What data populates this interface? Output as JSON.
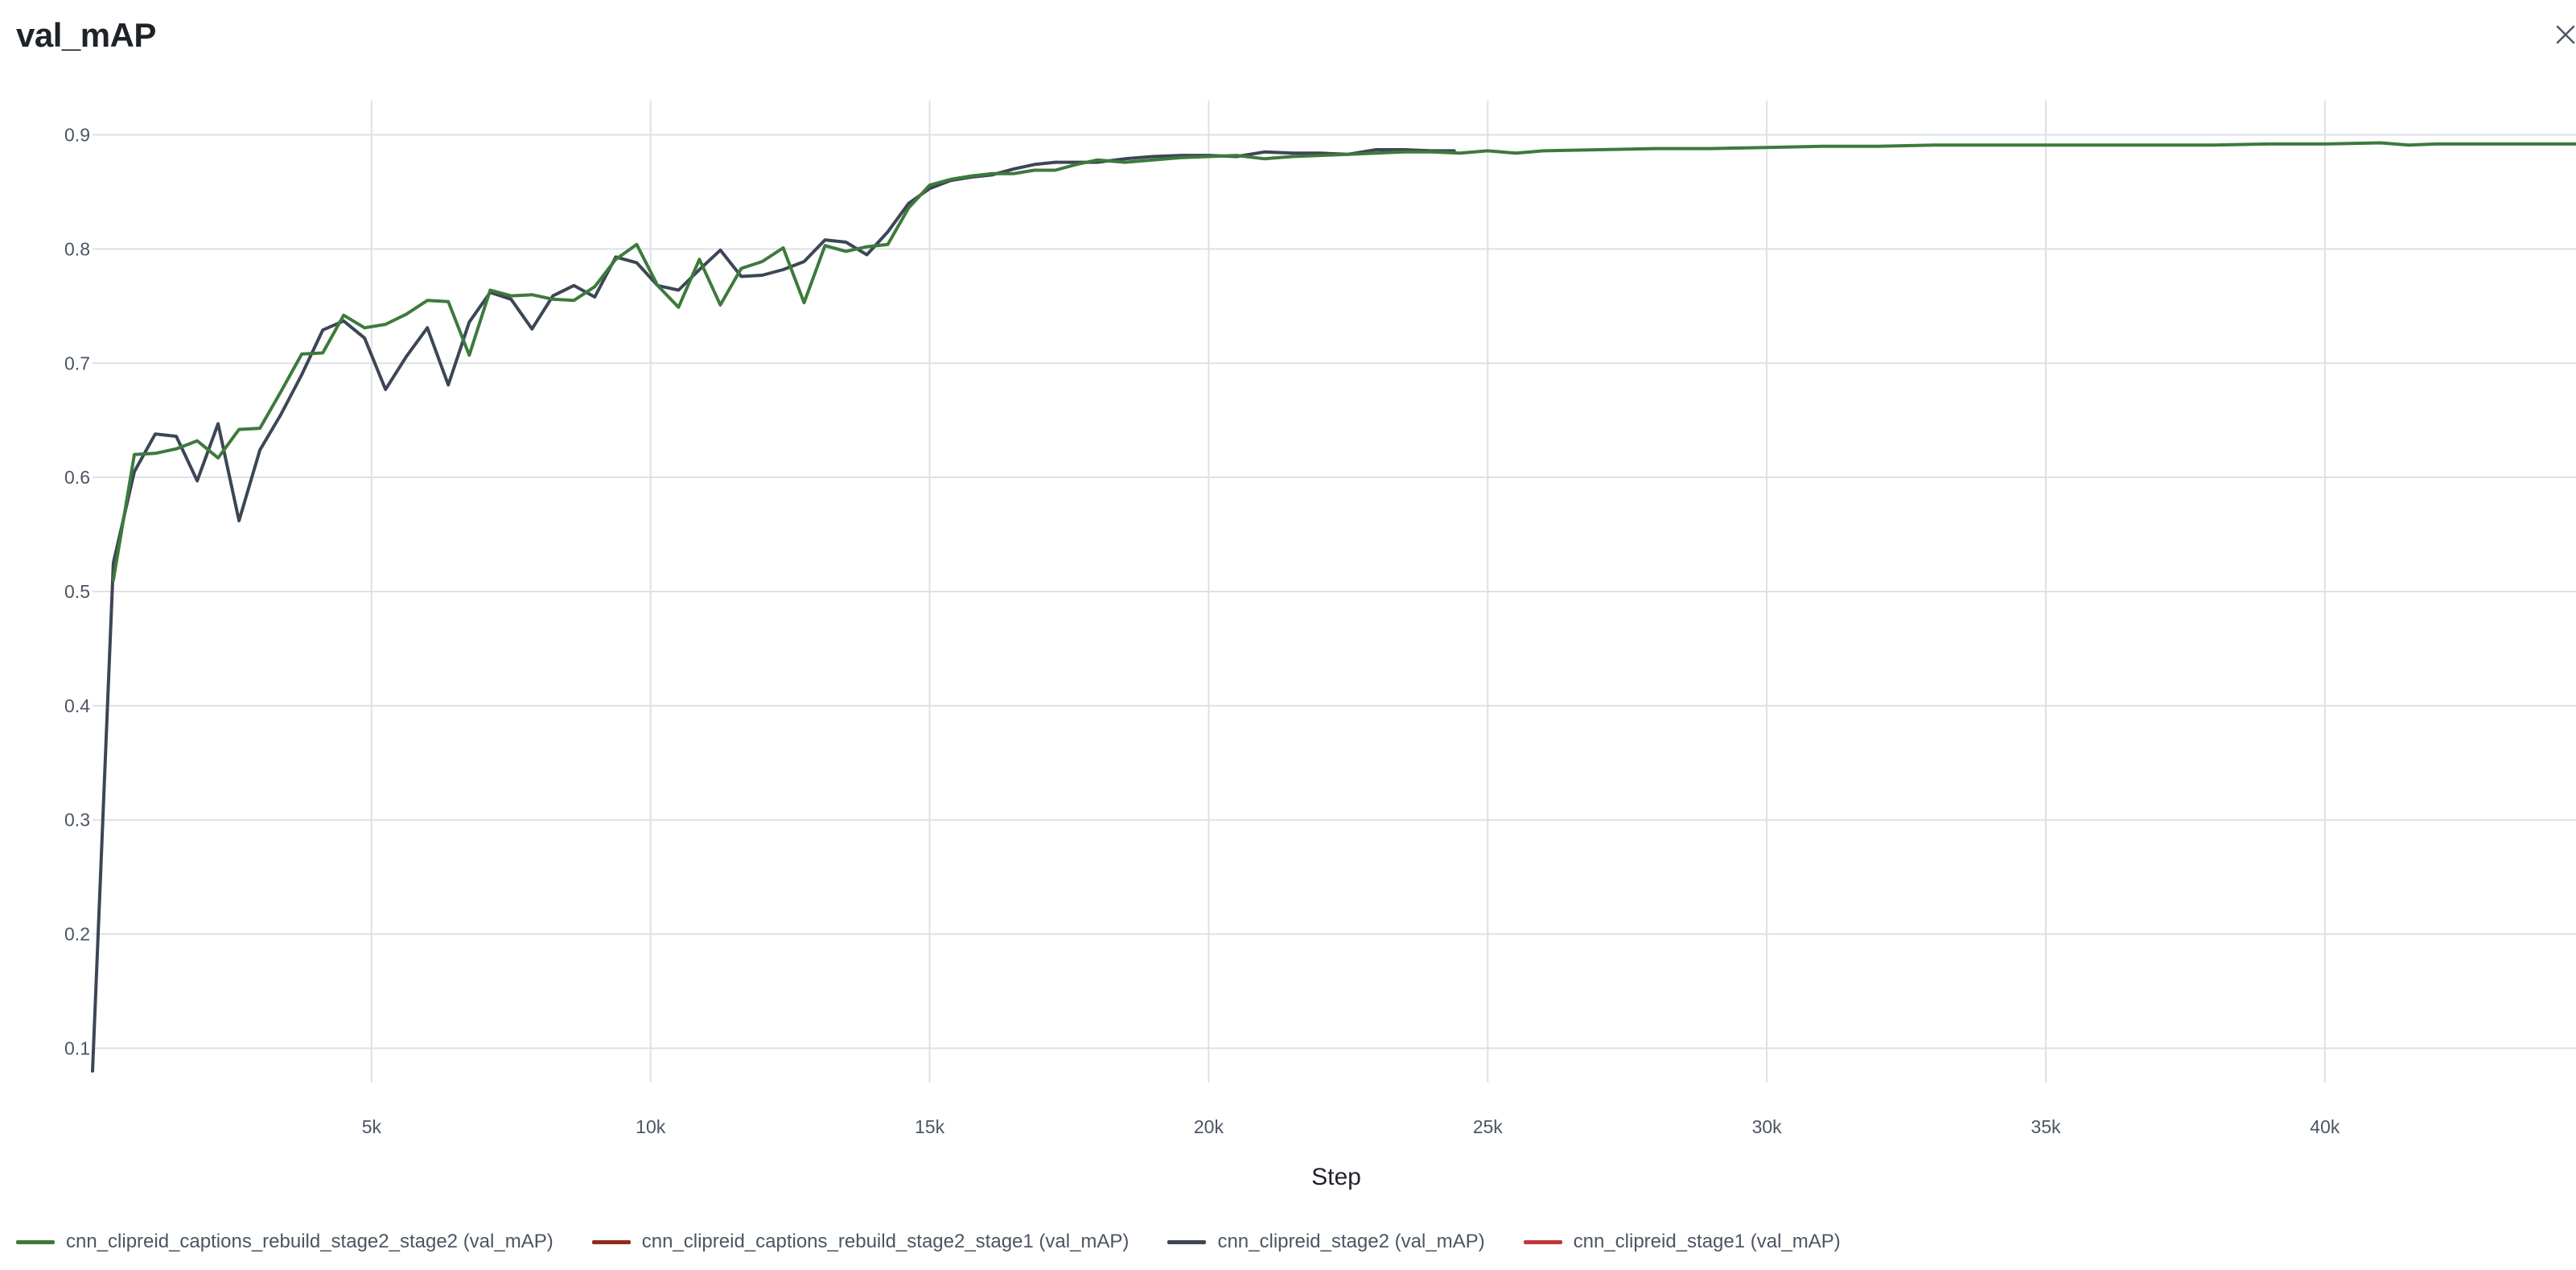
{
  "header": {
    "title": "val_mAP",
    "close_icon": "close-icon"
  },
  "chart_data": {
    "type": "line",
    "title": "val_mAP",
    "xlabel": "Step",
    "ylabel": "",
    "xlim": [
      0,
      44500
    ],
    "ylim": [
      0.07,
      0.93
    ],
    "grid": true,
    "x_ticks": [
      5000,
      10000,
      15000,
      20000,
      25000,
      30000,
      35000,
      40000
    ],
    "x_tick_labels": [
      "5k",
      "10k",
      "15k",
      "20k",
      "25k",
      "30k",
      "35k",
      "40k"
    ],
    "y_ticks": [
      0.1,
      0.2,
      0.3,
      0.4,
      0.5,
      0.6,
      0.7,
      0.8,
      0.9
    ],
    "y_tick_labels": [
      "0.1",
      "0.2",
      "0.3",
      "0.4",
      "0.5",
      "0.6",
      "0.7",
      "0.8",
      "0.9"
    ],
    "legend_position": "bottom-left",
    "series": [
      {
        "name": "cnn_clipreid_captions_rebuild_stage2_stage2 (val_mAP)",
        "color": "#3d7a3c",
        "x": [
          374,
          750,
          1125,
          1500,
          1875,
          2250,
          2625,
          3000,
          3375,
          3750,
          4125,
          4500,
          4875,
          5250,
          5625,
          6000,
          6375,
          6750,
          7125,
          7500,
          7875,
          8250,
          8625,
          9000,
          9375,
          9750,
          10125,
          10500,
          10875,
          11250,
          11625,
          12000,
          12375,
          12750,
          13125,
          13500,
          13875,
          14250,
          14625,
          15000,
          15375,
          15750,
          16125,
          16500,
          16875,
          17250,
          17625,
          18000,
          18500,
          19000,
          19500,
          20000,
          20500,
          21000,
          21500,
          22000,
          22500,
          23000,
          23500,
          24000,
          24500,
          25000,
          25500,
          26000,
          27000,
          28000,
          29000,
          30000,
          31000,
          32000,
          33000,
          34000,
          35000,
          36000,
          37000,
          38000,
          39000,
          40000,
          41000,
          41500,
          42000,
          43000,
          44000,
          44500
        ],
        "values": [
          0.51,
          0.62,
          0.621,
          0.625,
          0.632,
          0.617,
          0.642,
          0.643,
          0.675,
          0.708,
          0.709,
          0.742,
          0.731,
          0.734,
          0.743,
          0.755,
          0.754,
          0.707,
          0.764,
          0.759,
          0.76,
          0.756,
          0.755,
          0.767,
          0.791,
          0.804,
          0.768,
          0.749,
          0.791,
          0.751,
          0.783,
          0.789,
          0.801,
          0.753,
          0.803,
          0.798,
          0.802,
          0.804,
          0.836,
          0.856,
          0.861,
          0.864,
          0.866,
          0.866,
          0.869,
          0.869,
          0.874,
          0.878,
          0.876,
          0.878,
          0.88,
          0.881,
          0.882,
          0.879,
          0.881,
          0.882,
          0.883,
          0.884,
          0.885,
          0.885,
          0.884,
          0.886,
          0.884,
          0.886,
          0.887,
          0.888,
          0.888,
          0.889,
          0.89,
          0.89,
          0.891,
          0.891,
          0.891,
          0.891,
          0.891,
          0.891,
          0.892,
          0.892,
          0.893,
          0.891,
          0.892,
          0.892,
          0.892,
          0.892
        ]
      },
      {
        "name": "cnn_clipreid_captions_rebuild_stage2_stage1 (val_mAP)",
        "color": "#8b2e1a",
        "x": [],
        "values": []
      },
      {
        "name": "cnn_clipreid_stage2 (val_mAP)",
        "color": "#3c4655",
        "x": [
          0,
          374,
          750,
          1125,
          1500,
          1875,
          2250,
          2625,
          3000,
          3375,
          3750,
          4125,
          4500,
          4875,
          5250,
          5625,
          6000,
          6375,
          6750,
          7125,
          7500,
          7875,
          8250,
          8625,
          9000,
          9375,
          9750,
          10125,
          10500,
          10875,
          11250,
          11625,
          12000,
          12375,
          12750,
          13125,
          13500,
          13875,
          14250,
          14625,
          15000,
          15375,
          15750,
          16125,
          16500,
          16875,
          17250,
          17625,
          18000,
          18500,
          19000,
          19500,
          20000,
          20500,
          21000,
          21500,
          22000,
          22500,
          23000,
          23500,
          24000,
          24400
        ],
        "values": [
          0.08,
          0.525,
          0.605,
          0.638,
          0.636,
          0.597,
          0.647,
          0.562,
          0.624,
          0.655,
          0.69,
          0.729,
          0.737,
          0.722,
          0.677,
          0.706,
          0.731,
          0.681,
          0.736,
          0.762,
          0.756,
          0.73,
          0.759,
          0.768,
          0.758,
          0.793,
          0.788,
          0.768,
          0.764,
          0.782,
          0.799,
          0.776,
          0.777,
          0.782,
          0.789,
          0.808,
          0.806,
          0.795,
          0.815,
          0.84,
          0.853,
          0.86,
          0.863,
          0.865,
          0.87,
          0.874,
          0.876,
          0.876,
          0.876,
          0.879,
          0.881,
          0.882,
          0.882,
          0.881,
          0.885,
          0.884,
          0.884,
          0.883,
          0.887,
          0.887,
          0.886,
          0.886
        ]
      },
      {
        "name": "cnn_clipreid_stage1 (val_mAP)",
        "color": "#c0383d",
        "x": [],
        "values": []
      }
    ]
  }
}
